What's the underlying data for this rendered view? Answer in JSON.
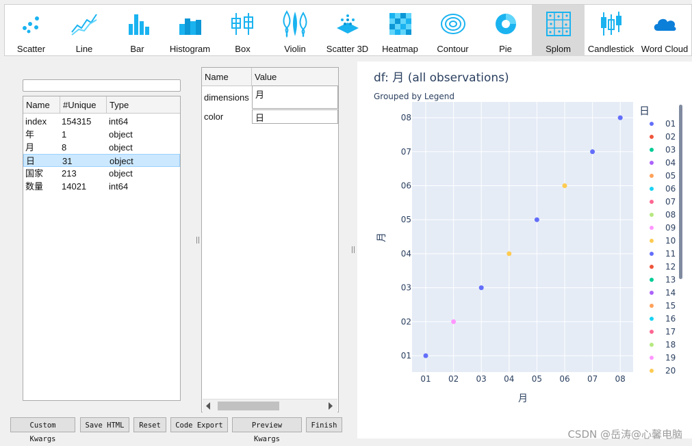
{
  "toolbar": {
    "items": [
      {
        "label": "Scatter",
        "icon": "scatter-icon"
      },
      {
        "label": "Line",
        "icon": "line-icon"
      },
      {
        "label": "Bar",
        "icon": "bar-icon"
      },
      {
        "label": "Histogram",
        "icon": "histogram-icon"
      },
      {
        "label": "Box",
        "icon": "box-icon"
      },
      {
        "label": "Violin",
        "icon": "violin-icon"
      },
      {
        "label": "Scatter 3D",
        "icon": "scatter-3d-icon"
      },
      {
        "label": "Heatmap",
        "icon": "heatmap-icon"
      },
      {
        "label": "Contour",
        "icon": "contour-icon"
      },
      {
        "label": "Pie",
        "icon": "pie-icon"
      },
      {
        "label": "Splom",
        "icon": "splom-icon"
      },
      {
        "label": "Candlestick",
        "icon": "candlestick-icon"
      },
      {
        "label": "Word Cloud",
        "icon": "word-cloud-icon"
      }
    ],
    "selected": "Splom",
    "accent": "#1ab3f0"
  },
  "columns": {
    "search_value": "",
    "headers": {
      "name": "Name",
      "unique": "#Unique",
      "type": "Type"
    },
    "rows": [
      {
        "name": "index",
        "unique": "154315",
        "type": "int64"
      },
      {
        "name": "年",
        "unique": "1",
        "type": "object"
      },
      {
        "name": "月",
        "unique": "8",
        "type": "object"
      },
      {
        "name": "日",
        "unique": "31",
        "type": "object"
      },
      {
        "name": "国家",
        "unique": "213",
        "type": "object"
      },
      {
        "name": "数量",
        "unique": "14021",
        "type": "int64"
      }
    ],
    "selected_row": 3
  },
  "kwargs": {
    "headers": {
      "name": "Name",
      "value": "Value"
    },
    "rows": [
      {
        "name": "dimensions",
        "value": "月"
      },
      {
        "name": "color",
        "value": "日"
      }
    ]
  },
  "buttons": {
    "custom_kwargs": "Custom Kwargs",
    "save_html": "Save HTML",
    "reset": "Reset",
    "code_export": "Code Export",
    "preview_kwargs": "Preview Kwargs",
    "finish": "Finish"
  },
  "plot": {
    "title": "df: 月 (all observations)",
    "subtitle": "Grouped by Legend",
    "legend_title": "日"
  },
  "chart_data": {
    "type": "scatter",
    "title": "df: 月 (all observations)",
    "subtitle": "Grouped by Legend",
    "xlabel": "月",
    "ylabel": "月",
    "categories": [
      "01",
      "02",
      "03",
      "04",
      "05",
      "06",
      "07",
      "08"
    ],
    "points": [
      {
        "x": "01",
        "y": "01",
        "color": "#636efa"
      },
      {
        "x": "02",
        "y": "02",
        "color": "#ff97ff"
      },
      {
        "x": "03",
        "y": "03",
        "color": "#636efa"
      },
      {
        "x": "04",
        "y": "04",
        "color": "#fecb52"
      },
      {
        "x": "05",
        "y": "05",
        "color": "#636efa"
      },
      {
        "x": "06",
        "y": "06",
        "color": "#fecb52"
      },
      {
        "x": "07",
        "y": "07",
        "color": "#636efa"
      },
      {
        "x": "08",
        "y": "08",
        "color": "#636efa"
      }
    ],
    "grid": true,
    "plot_bg": "#e5ecf6",
    "legend": {
      "placement": "right",
      "title": "日",
      "entries": [
        {
          "name": "01",
          "color": "#636efa"
        },
        {
          "name": "02",
          "color": "#ef553b"
        },
        {
          "name": "03",
          "color": "#00cc96"
        },
        {
          "name": "04",
          "color": "#ab63fa"
        },
        {
          "name": "05",
          "color": "#ffa15a"
        },
        {
          "name": "06",
          "color": "#19d3f3"
        },
        {
          "name": "07",
          "color": "#ff6692"
        },
        {
          "name": "08",
          "color": "#b6e880"
        },
        {
          "name": "09",
          "color": "#ff97ff"
        },
        {
          "name": "10",
          "color": "#fecb52"
        },
        {
          "name": "11",
          "color": "#636efa"
        },
        {
          "name": "12",
          "color": "#ef553b"
        },
        {
          "name": "13",
          "color": "#00cc96"
        },
        {
          "name": "14",
          "color": "#ab63fa"
        },
        {
          "name": "15",
          "color": "#ffa15a"
        },
        {
          "name": "16",
          "color": "#19d3f3"
        },
        {
          "name": "17",
          "color": "#ff6692"
        },
        {
          "name": "18",
          "color": "#b6e880"
        },
        {
          "name": "19",
          "color": "#ff97ff"
        },
        {
          "name": "20",
          "color": "#fecb52"
        }
      ]
    }
  },
  "watermark": "CSDN @岳涛@心馨电脑"
}
